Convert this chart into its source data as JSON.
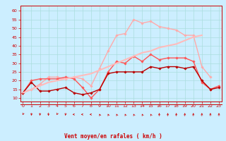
{
  "bg_color": "#cceeff",
  "grid_color": "#aadddd",
  "xlabel": "Vent moyen/en rafales ( km/h )",
  "x_ticks": [
    0,
    1,
    2,
    3,
    4,
    5,
    6,
    7,
    8,
    9,
    10,
    11,
    12,
    13,
    14,
    15,
    16,
    17,
    18,
    19,
    20,
    21,
    22,
    23
  ],
  "y_ticks": [
    10,
    15,
    20,
    25,
    30,
    35,
    40,
    45,
    50,
    55,
    60
  ],
  "ylim": [
    8,
    63
  ],
  "xlim": [
    -0.3,
    23.3
  ],
  "series": [
    {
      "color": "#ffaaaa",
      "lw": 1.0,
      "marker": "D",
      "ms": 1.8,
      "data": [
        13,
        15,
        18,
        22,
        22,
        21,
        22,
        21,
        17,
        27,
        37,
        46,
        47,
        55,
        53,
        54,
        51,
        50,
        49,
        46,
        46,
        28,
        22,
        null
      ]
    },
    {
      "color": "#ff5555",
      "lw": 1.0,
      "marker": "D",
      "ms": 1.8,
      "data": [
        13,
        20,
        21,
        21,
        21,
        22,
        21,
        16,
        10,
        15,
        25,
        31,
        30,
        34,
        31,
        35,
        32,
        33,
        33,
        33,
        31,
        19,
        15,
        17
      ]
    },
    {
      "color": "#bb0000",
      "lw": 1.0,
      "marker": "D",
      "ms": 1.8,
      "data": [
        13,
        19,
        14,
        14,
        15,
        16,
        13,
        12,
        13,
        15,
        24,
        25,
        25,
        25,
        25,
        28,
        27,
        28,
        28,
        27,
        28,
        20,
        15,
        16
      ]
    },
    {
      "color": "#ffbbbb",
      "lw": 1.5,
      "marker": null,
      "ms": 0,
      "data": [
        13,
        15,
        17,
        19,
        20,
        21,
        22,
        23,
        24,
        26,
        28,
        30,
        32,
        34,
        36,
        37,
        39,
        40,
        41,
        43,
        45,
        46,
        null,
        null
      ]
    }
  ],
  "arrow_angles_deg": [
    225,
    202,
    202,
    180,
    225,
    202,
    270,
    270,
    270,
    315,
    315,
    315,
    315,
    315,
    315,
    315,
    0,
    0,
    0,
    0,
    0,
    0,
    0,
    0
  ]
}
